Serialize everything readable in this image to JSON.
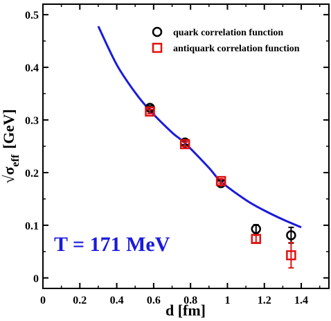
{
  "chart_data": {
    "type": "scatter",
    "xlabel": "d [fm]",
    "ylabel": {
      "root": "√",
      "sym": "σ",
      "sub": "eff",
      "unit": "[GeV]"
    },
    "xlim": [
      0,
      1.55
    ],
    "ylim": [
      -0.02,
      0.52
    ],
    "xticks": [
      0,
      0.2,
      0.4,
      0.6,
      0.8,
      1.0,
      1.2,
      1.4
    ],
    "xtick_labels": [
      "0",
      "0.2",
      "0.4",
      "0.6",
      "0.8",
      "1",
      "1.2",
      "1.4"
    ],
    "yticks": [
      0,
      0.1,
      0.2,
      0.3,
      0.4,
      0.5
    ],
    "ytick_labels": [
      "0",
      "0.1",
      "0.2",
      "0.3",
      "0.4",
      "0.5"
    ],
    "legend_position": "top-right",
    "annotation": {
      "text": "T = 171 MeV",
      "color": "#1a1adc"
    },
    "series": [
      {
        "name": "quark correlation function",
        "marker": "circle",
        "color": "#000000",
        "points": [
          {
            "x": 0.58,
            "y": 0.323,
            "err": 0.004
          },
          {
            "x": 0.77,
            "y": 0.257,
            "err": 0.004
          },
          {
            "x": 0.965,
            "y": 0.18,
            "err": 0.004
          },
          {
            "x": 1.155,
            "y": 0.093,
            "err": 0.008
          },
          {
            "x": 1.345,
            "y": 0.081,
            "err": 0.015
          }
        ]
      },
      {
        "name": "antiquark correlation function",
        "marker": "square",
        "color": "#e01010",
        "points": [
          {
            "x": 0.58,
            "y": 0.316,
            "err": 0.004
          },
          {
            "x": 0.77,
            "y": 0.254,
            "err": 0.004
          },
          {
            "x": 0.965,
            "y": 0.184,
            "err": 0.004
          },
          {
            "x": 1.155,
            "y": 0.074,
            "err": 0.007
          },
          {
            "x": 1.345,
            "y": 0.043,
            "err": 0.024
          }
        ]
      }
    ],
    "fit_curve": {
      "color": "#1a1adc",
      "points": [
        {
          "x": 0.3,
          "y": 0.478
        },
        {
          "x": 0.4,
          "y": 0.405
        },
        {
          "x": 0.5,
          "y": 0.352
        },
        {
          "x": 0.58,
          "y": 0.318
        },
        {
          "x": 0.7,
          "y": 0.276
        },
        {
          "x": 0.77,
          "y": 0.256
        },
        {
          "x": 0.9,
          "y": 0.209
        },
        {
          "x": 0.965,
          "y": 0.183
        },
        {
          "x": 1.1,
          "y": 0.148
        },
        {
          "x": 1.2,
          "y": 0.128
        },
        {
          "x": 1.3,
          "y": 0.111
        },
        {
          "x": 1.4,
          "y": 0.096
        }
      ]
    }
  }
}
